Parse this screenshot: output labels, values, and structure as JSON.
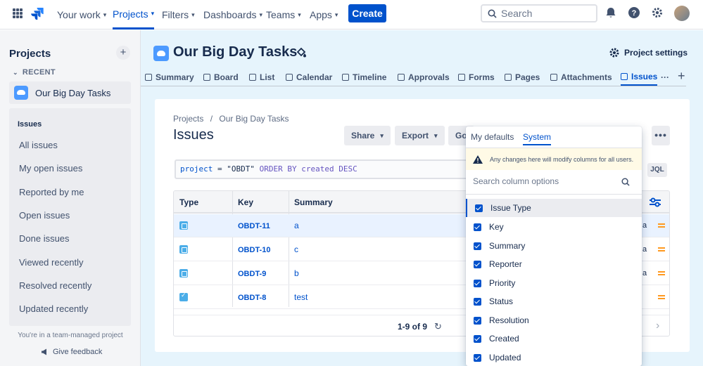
{
  "topnav": {
    "items": [
      {
        "label": "Your work"
      },
      {
        "label": "Projects"
      },
      {
        "label": "Filters"
      },
      {
        "label": "Dashboards"
      },
      {
        "label": "Teams"
      },
      {
        "label": "Apps"
      }
    ],
    "create_label": "Create",
    "search_placeholder": "Search"
  },
  "sidebar": {
    "title": "Projects",
    "recent_label": "RECENT",
    "project_name": "Our Big Day Tasks",
    "issues_heading": "Issues",
    "links": [
      "All issues",
      "My open issues",
      "Reported by me",
      "Open issues",
      "Done issues",
      "Viewed recently",
      "Resolved recently",
      "Updated recently"
    ],
    "footer_text": "You're in a team-managed project",
    "feedback_label": "Give feedback"
  },
  "project": {
    "title": "Our Big Day Tasks",
    "settings_label": "Project settings",
    "tabs": [
      "Summary",
      "Board",
      "List",
      "Calendar",
      "Timeline",
      "Approvals",
      "Forms",
      "Pages",
      "Attachments",
      "Issues"
    ]
  },
  "issues_view": {
    "breadcrumb_root": "Projects",
    "breadcrumb_sep": "/",
    "breadcrumb_project": "Our Big Day Tasks",
    "title": "Issues",
    "share_label": "Share",
    "export_label": "Export",
    "go_label": "Go",
    "jql_query": {
      "field": "project",
      "op": "=",
      "value": "\"OBDT\"",
      "order": "ORDER BY",
      "sort_field": "created",
      "dir": "DESC"
    },
    "jql_button": "JQL",
    "columns": [
      "Type",
      "Key",
      "Summary"
    ],
    "rows": [
      {
        "type": "subtask",
        "key": "OBDT-11",
        "summary": "a"
      },
      {
        "type": "subtask",
        "key": "OBDT-10",
        "summary": "c"
      },
      {
        "type": "subtask",
        "key": "OBDT-9",
        "summary": "b"
      },
      {
        "type": "task",
        "key": "OBDT-8",
        "summary": "test"
      }
    ],
    "pager": "1-9 of 9",
    "cut_text": "a"
  },
  "column_picker": {
    "tabs": [
      "My defaults",
      "System"
    ],
    "warning": "Any changes here will modify columns for all users.",
    "search_placeholder": "Search column options",
    "options": [
      "Issue Type",
      "Key",
      "Summary",
      "Reporter",
      "Priority",
      "Status",
      "Resolution",
      "Created",
      "Updated"
    ]
  },
  "colors": {
    "brand": "#0052cc",
    "priority_medium": "#ff991f",
    "header_bg": "#e6f4fc"
  }
}
